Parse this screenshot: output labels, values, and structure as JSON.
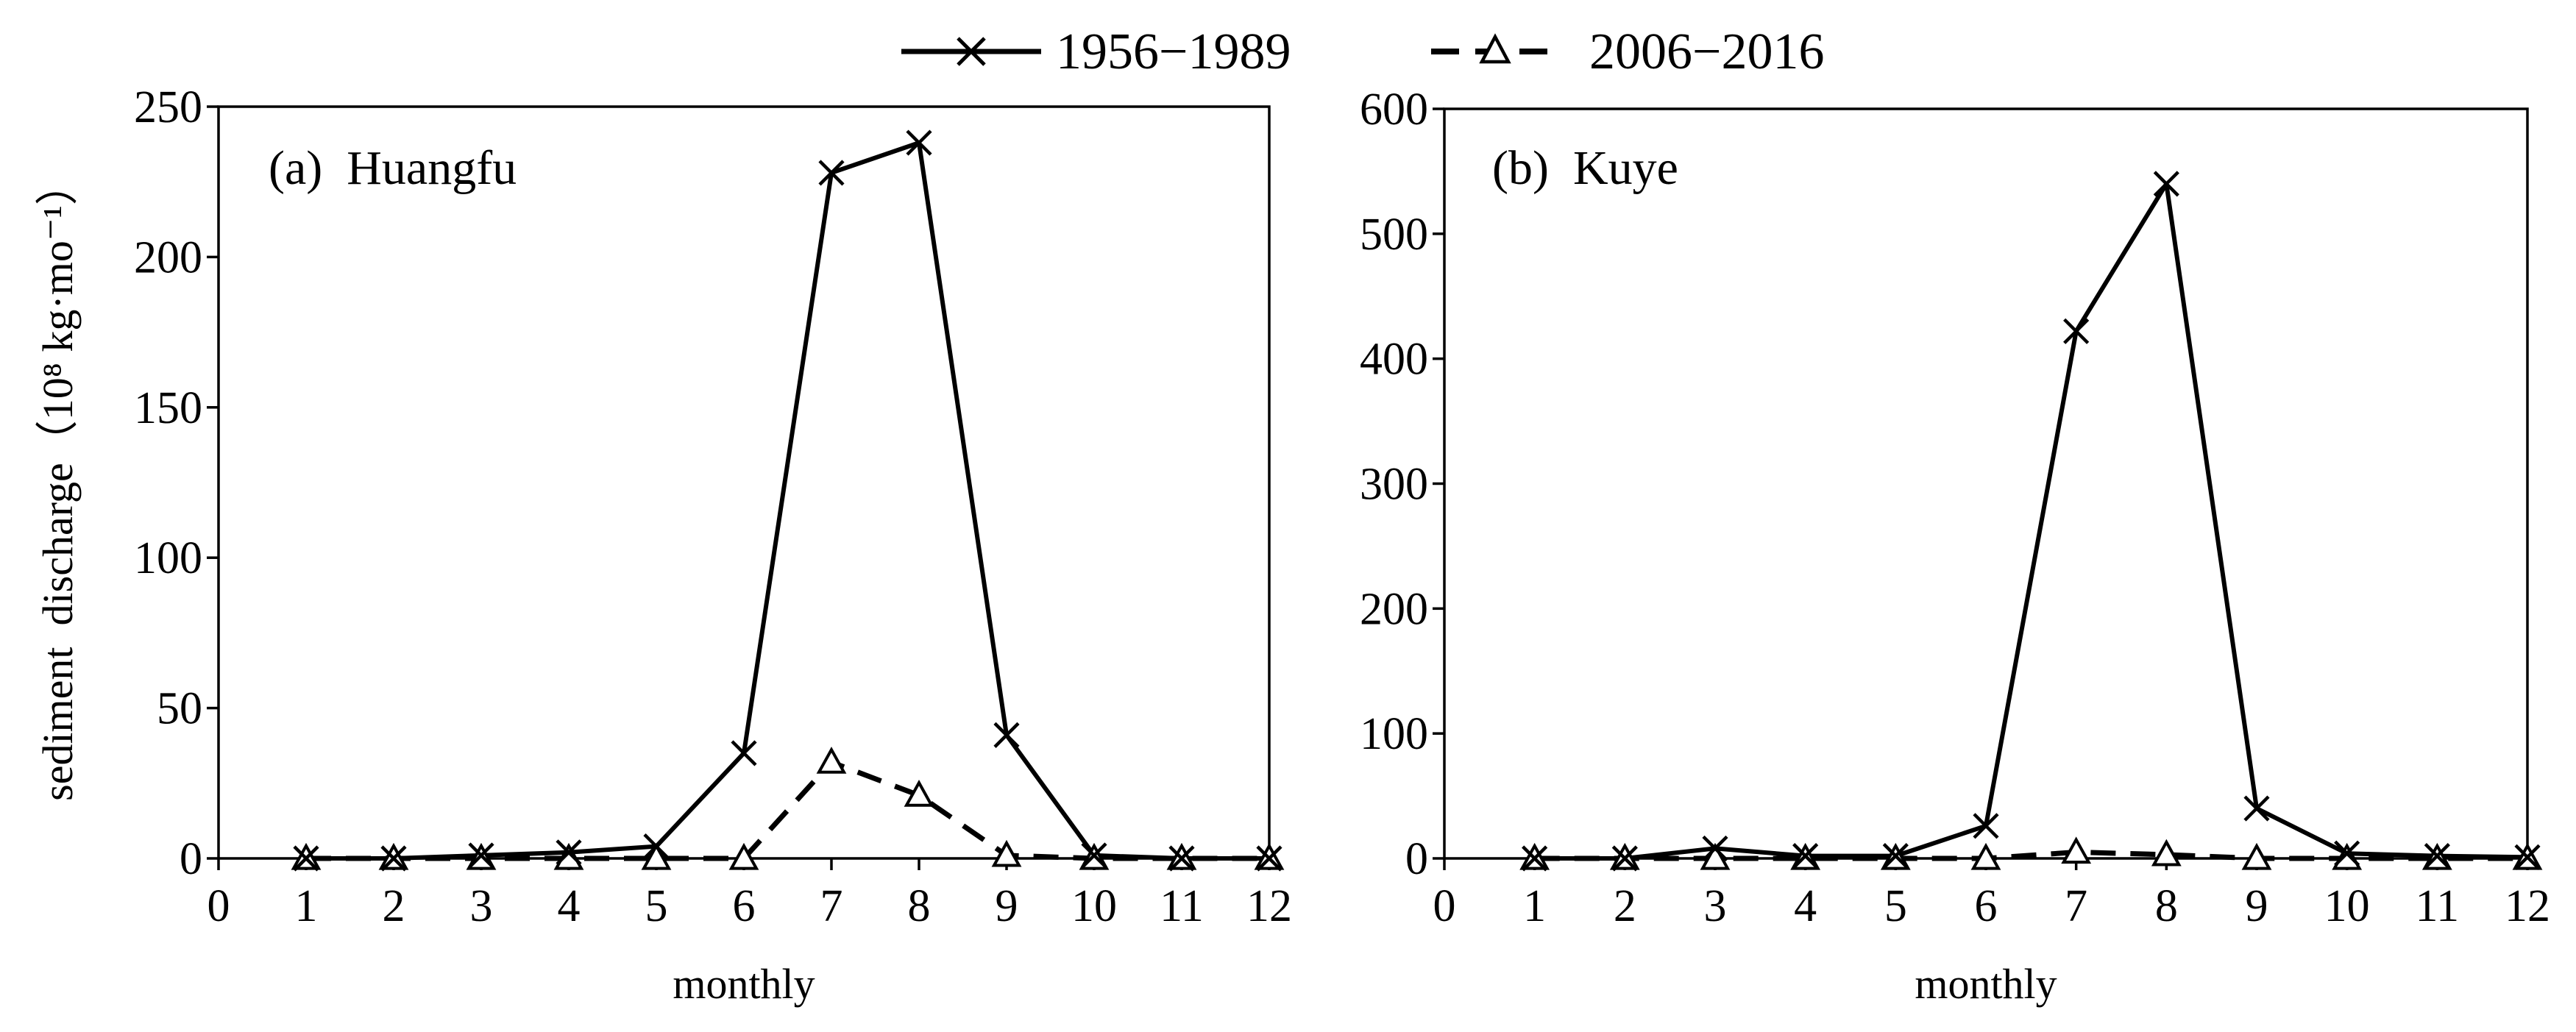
{
  "legend": {
    "items": [
      {
        "label": "1956−1989",
        "style": "solid",
        "marker": "x"
      },
      {
        "label": "2006−2016",
        "style": "dashed",
        "marker": "triangle"
      }
    ]
  },
  "chart_data": [
    {
      "type": "line",
      "title": "(a)  Huangfu",
      "xlabel": "monthly",
      "ylabel": "sediment  discharge（10⁸ kg·mo⁻¹）",
      "x": [
        1,
        2,
        3,
        4,
        5,
        6,
        7,
        8,
        9,
        10,
        11,
        12
      ],
      "xlim": [
        0,
        12
      ],
      "ylim": [
        0,
        250
      ],
      "xticks": [
        "0",
        "1",
        "2",
        "3",
        "4",
        "5",
        "6",
        "7",
        "8",
        "9",
        "10",
        "11",
        "12"
      ],
      "yticks": [
        "0",
        "50",
        "100",
        "150",
        "200",
        "250"
      ],
      "grid": false,
      "series": [
        {
          "name": "1956−1989",
          "values": [
            0,
            0,
            1,
            2,
            4,
            35,
            228,
            238,
            41,
            1,
            0,
            0
          ]
        },
        {
          "name": "2006−2016",
          "values": [
            0,
            0,
            0,
            0,
            0,
            0,
            32,
            21,
            1,
            0,
            0,
            0
          ]
        }
      ]
    },
    {
      "type": "line",
      "title": "(b)  Kuye",
      "xlabel": "monthly",
      "ylabel": "",
      "x": [
        1,
        2,
        3,
        4,
        5,
        6,
        7,
        8,
        9,
        10,
        11,
        12
      ],
      "xlim": [
        0,
        12
      ],
      "ylim": [
        0,
        600
      ],
      "xticks": [
        "0",
        "1",
        "2",
        "3",
        "4",
        "5",
        "6",
        "7",
        "8",
        "9",
        "10",
        "11",
        "12"
      ],
      "yticks": [
        "0",
        "100",
        "200",
        "300",
        "400",
        "500",
        "600"
      ],
      "grid": false,
      "series": [
        {
          "name": "1956−1989",
          "values": [
            0,
            0,
            8,
            2,
            2,
            26,
            422,
            540,
            40,
            4,
            2,
            1
          ]
        },
        {
          "name": "2006−2016",
          "values": [
            0,
            0,
            0,
            0,
            0,
            0,
            5,
            3,
            0,
            0,
            0,
            0
          ]
        }
      ]
    }
  ]
}
